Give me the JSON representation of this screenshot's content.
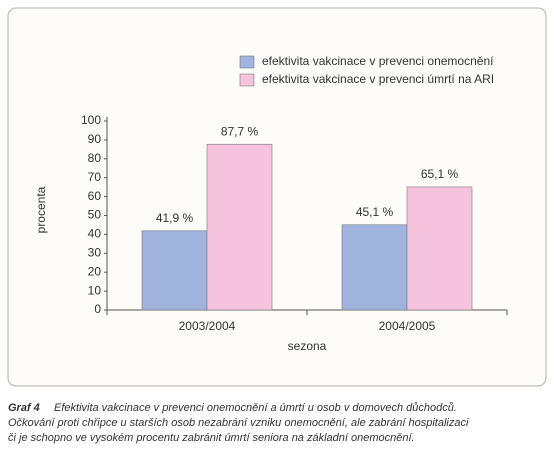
{
  "chart_data": {
    "type": "bar",
    "categories": [
      "2003/2004",
      "2004/2005"
    ],
    "series": [
      {
        "name": "efektivita vakcinace v prevenci onemocnění",
        "color": "#9fb3dc",
        "values": [
          41.9,
          45.1
        ],
        "value_labels": [
          "41,9 %",
          "45,1 %"
        ]
      },
      {
        "name": "efektivita vakcinace v prevenci úmrtí na ARI",
        "color": "#f6c3dc",
        "values": [
          87.7,
          65.1
        ],
        "value_labels": [
          "87,7 %",
          "65,1 %"
        ]
      }
    ],
    "ylim": [
      0,
      100
    ],
    "yticks": [
      0,
      10,
      20,
      30,
      40,
      50,
      60,
      70,
      80,
      90,
      100
    ],
    "ylabel": "procenta",
    "xlabel": "sezona",
    "legend": "top-right"
  },
  "caption": {
    "label": "Graf 4",
    "lines": [
      "Efektivita vakcinace v prevenci onemocnění a úmrtí u osob v domovech důchodců.",
      "Očkování proti chřipce u starších osob nezabrání vzniku onemocnění, ale zabrání hospitalizaci",
      "či je schopno ve vysokém procentu zabránit úmrtí seniora na základní onemocnění."
    ]
  }
}
